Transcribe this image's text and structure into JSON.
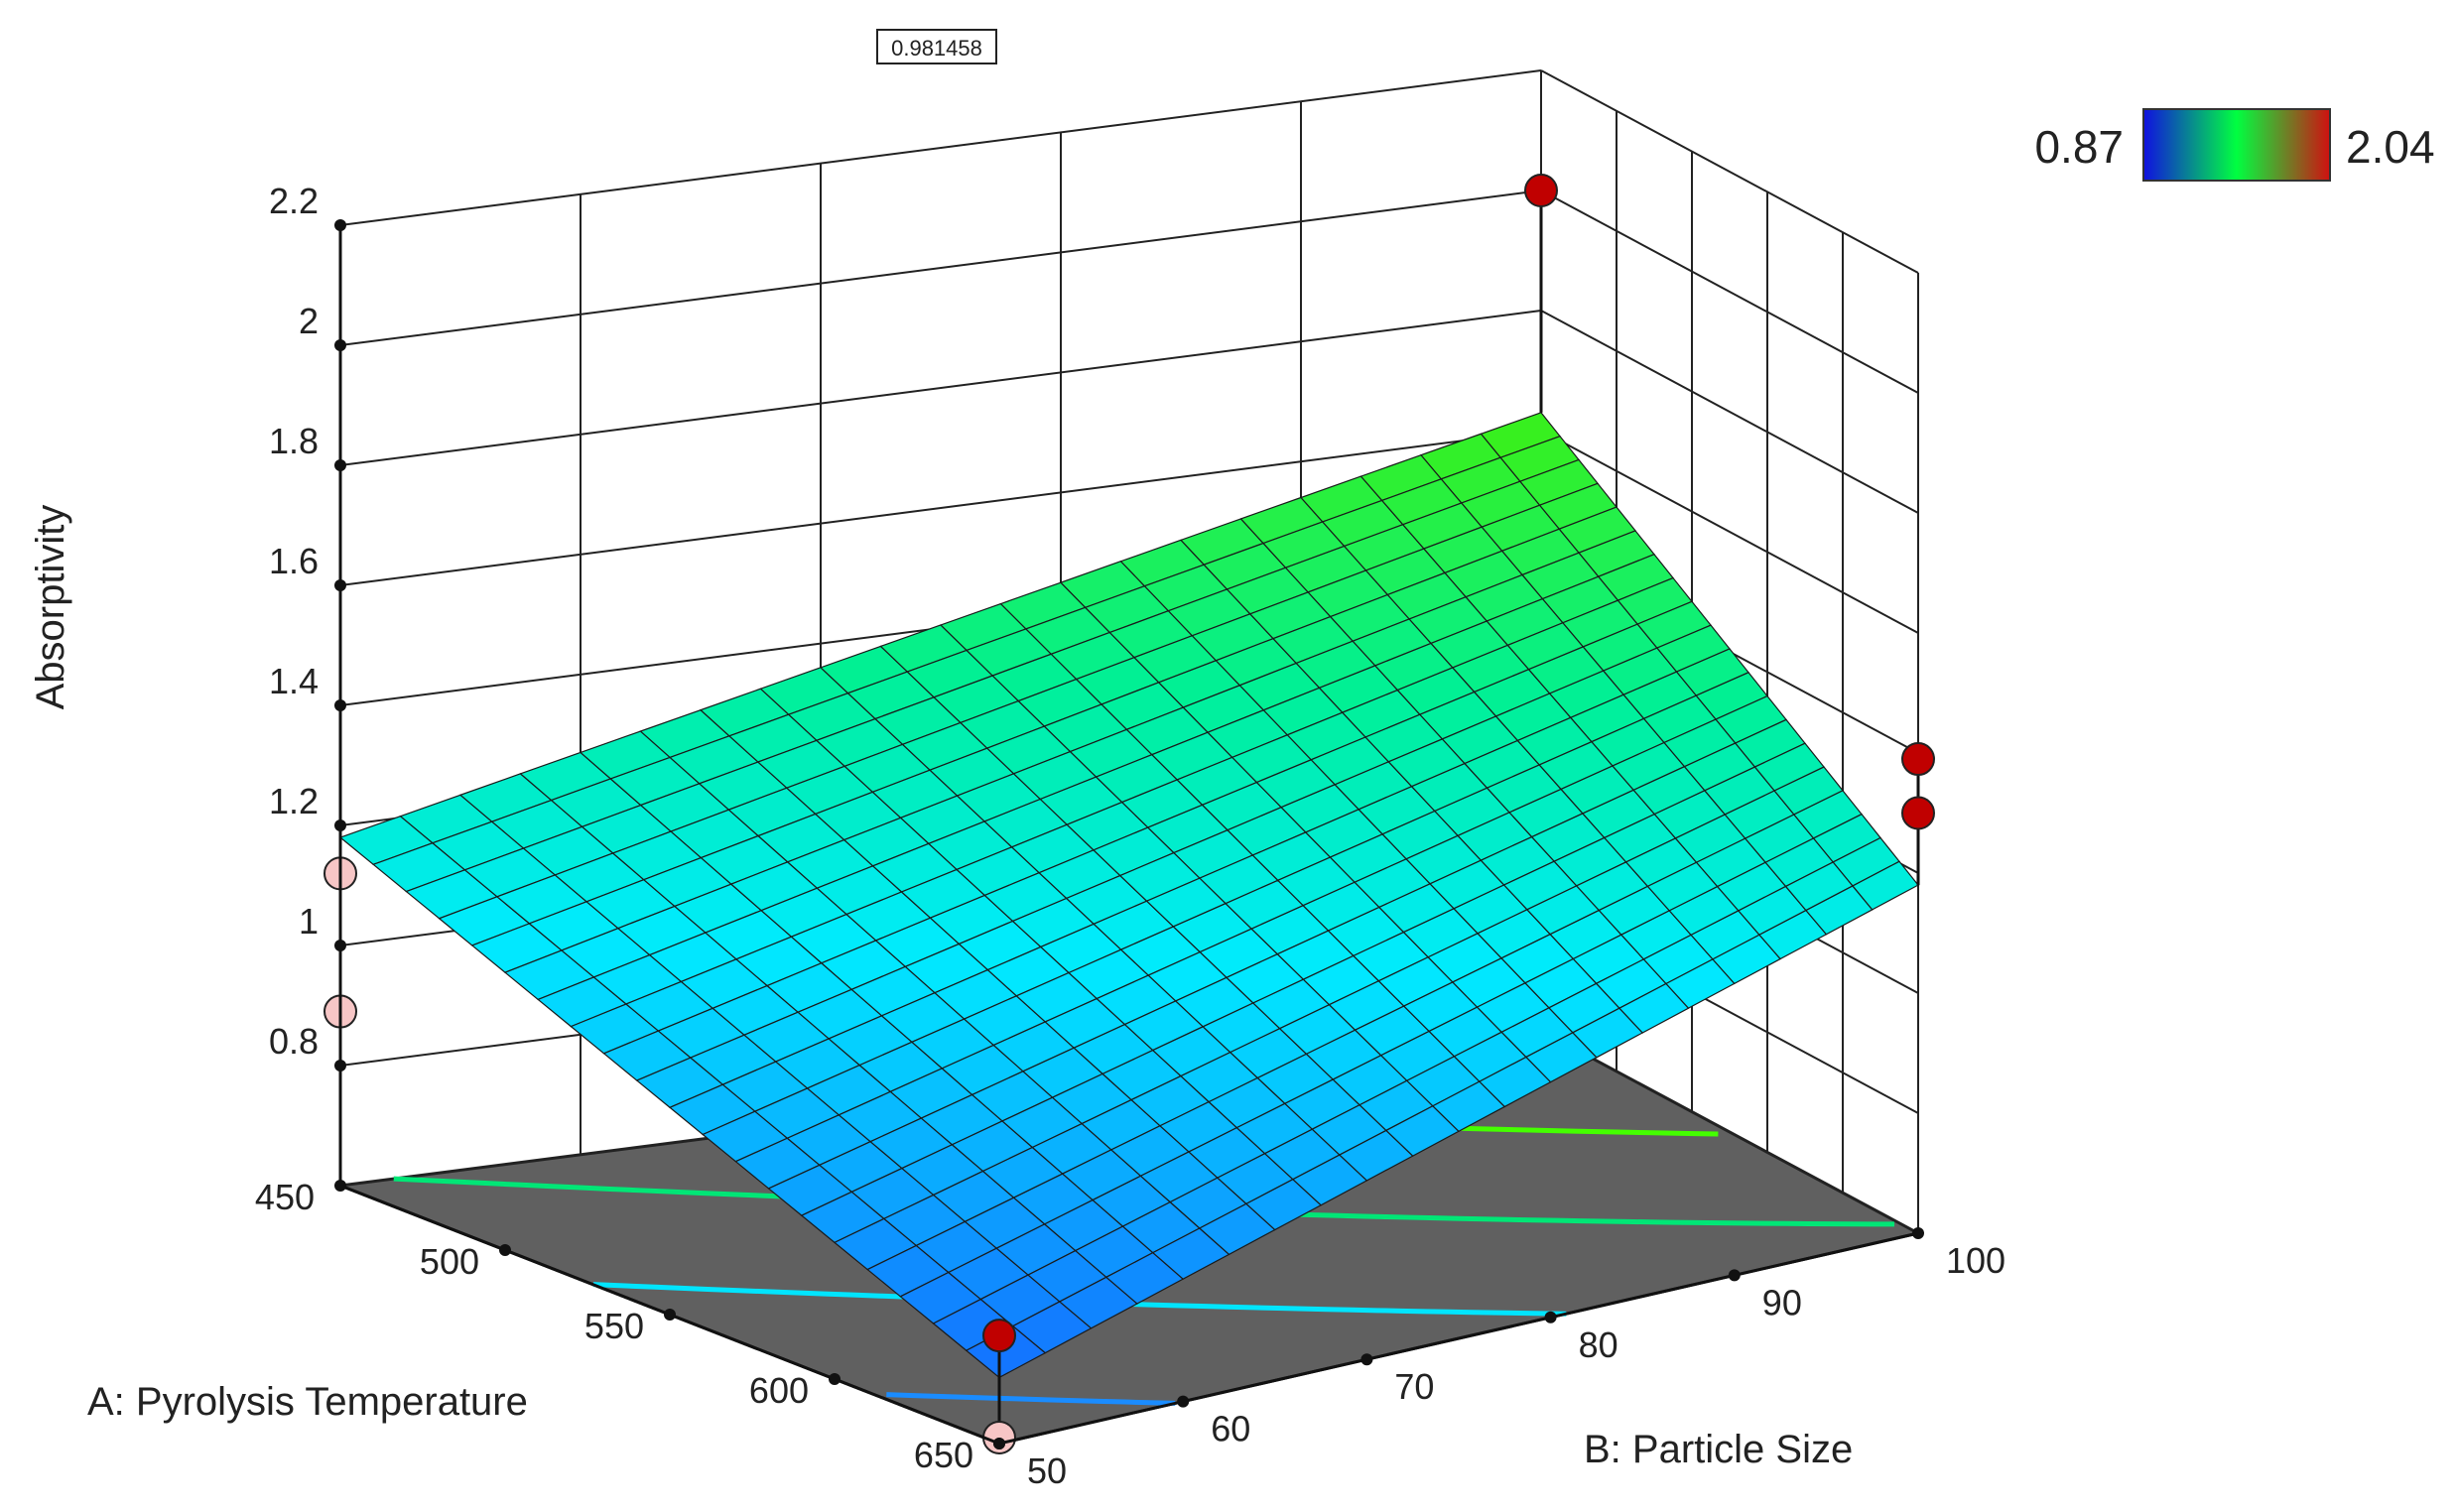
{
  "chart_data": {
    "type": "surface3d",
    "title": "",
    "zlabel": "Absorptivity",
    "xlabel": "A: Pyrolysis Temperature",
    "ylabel": "B: Particle Size",
    "x_ticks": [
      "450",
      "500",
      "550",
      "600",
      "650"
    ],
    "y_ticks": [
      "50",
      "60",
      "70",
      "80",
      "90",
      "100"
    ],
    "z_ticks": [
      "0.8",
      "1",
      "1.2",
      "1.4",
      "1.6",
      "1.8",
      "2",
      "2.2"
    ],
    "xlim": [
      450,
      650
    ],
    "ylim": [
      50,
      100
    ],
    "zlim": [
      0.6,
      2.2
    ],
    "surface": {
      "corners": [
        {
          "x": 450,
          "y": 50,
          "z": 1.18
        },
        {
          "x": 650,
          "y": 50,
          "z": 0.71
        },
        {
          "x": 650,
          "y": 100,
          "z": 1.18
        },
        {
          "x": 450,
          "y": 100,
          "z": 1.63
        }
      ],
      "grid_steps": 20
    },
    "colorbar": {
      "min_label": "0.87",
      "max_label": "2.04",
      "colors": [
        "#1010e0",
        "#00ff40",
        "#d01010"
      ]
    },
    "readout": "0.981458",
    "design_points": [
      {
        "x": 450,
        "y": 50,
        "z": 1.12,
        "above_surface": false
      },
      {
        "x": 450,
        "y": 50,
        "z": 0.89,
        "above_surface": false
      },
      {
        "x": 650,
        "y": 50,
        "z": 0.78,
        "above_surface": true
      },
      {
        "x": 650,
        "y": 50,
        "z": 0.61,
        "above_surface": false
      },
      {
        "x": 650,
        "y": 100,
        "z": 1.39,
        "above_surface": true
      },
      {
        "x": 650,
        "y": 100,
        "z": 1.3,
        "above_surface": true
      },
      {
        "x": 450,
        "y": 100,
        "z": 2.0,
        "above_surface": true
      }
    ],
    "contours": [
      {
        "level": 0.8,
        "color": "#1a8cff"
      },
      {
        "level": 1.0,
        "color": "#00e5ff"
      },
      {
        "level": 1.2,
        "color": "#00e676"
      },
      {
        "level": 1.4,
        "color": "#44ff00"
      }
    ],
    "grid": true
  }
}
